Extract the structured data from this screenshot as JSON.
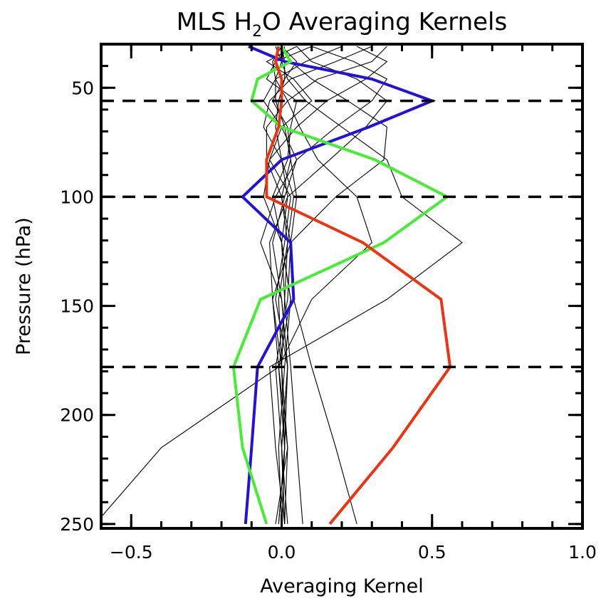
{
  "chart_data": {
    "type": "line",
    "title_main": "MLS H",
    "title_sub": "2",
    "title_rest": "O Averaging Kernels",
    "xlabel": "Averaging Kernel",
    "ylabel": "Pressure (hPa)",
    "xlim": [
      -0.6,
      1.0
    ],
    "ylim": [
      30,
      252
    ],
    "x_ticks": [
      -0.5,
      0.0,
      0.5,
      1.0
    ],
    "x_tick_labels": [
      "−0.5",
      "0.0",
      "0.5",
      "1.0"
    ],
    "y_ticks": [
      50,
      100,
      150,
      200,
      250
    ],
    "y_tick_labels": [
      "50",
      "100",
      "150",
      "200",
      "250"
    ],
    "levels": [
      31,
      38,
      46,
      56,
      68,
      83,
      100,
      121,
      147,
      178,
      215,
      250
    ],
    "reference_lines_hPa": [
      56,
      100,
      178
    ],
    "series": [
      {
        "color": "#2211dd",
        "values": [
          -0.11,
          0.01,
          0.3,
          0.5,
          0.29,
          0.0,
          -0.13,
          0.03,
          0.04,
          -0.08,
          -0.1,
          -0.12
        ]
      },
      {
        "color": "#44ee33",
        "values": [
          0.0,
          0.03,
          -0.08,
          -0.1,
          0.0,
          0.31,
          0.55,
          0.34,
          -0.07,
          -0.16,
          -0.13,
          -0.05
        ]
      },
      {
        "color": "#ee3311",
        "values": [
          -0.01,
          -0.02,
          0.0,
          0.0,
          -0.01,
          -0.05,
          -0.05,
          0.27,
          0.53,
          0.56,
          0.37,
          0.16
        ]
      }
    ],
    "background_kernels": [
      {
        "values": [
          0.0,
          0.05,
          0.01,
          -0.03,
          0.02,
          0.03,
          0.0,
          0.02,
          0.01,
          0.0,
          0.01,
          0.0
        ]
      },
      {
        "values": [
          0.05,
          -0.05,
          0.04,
          0.1,
          0.0,
          -0.04,
          0.03,
          0.01,
          -0.02,
          0.02,
          0.0,
          0.01
        ]
      },
      {
        "values": [
          0.1,
          -0.02,
          -0.05,
          0.05,
          0.03,
          0.02,
          -0.03,
          0.0,
          0.03,
          -0.01,
          0.02,
          -0.02
        ]
      },
      {
        "values": [
          0.2,
          0.08,
          -0.02,
          -0.06,
          0.0,
          0.05,
          0.01,
          -0.03,
          0.0,
          0.02,
          0.0,
          0.01
        ]
      },
      {
        "values": [
          0.3,
          0.18,
          0.03,
          -0.04,
          -0.06,
          0.0,
          0.04,
          0.02,
          -0.01,
          0.0,
          0.01,
          -0.01
        ]
      },
      {
        "values": [
          0.35,
          0.3,
          0.12,
          0.02,
          -0.05,
          -0.05,
          0.0,
          0.03,
          0.02,
          -0.02,
          0.0,
          0.02
        ]
      },
      {
        "values": [
          0.25,
          0.35,
          0.28,
          0.15,
          0.05,
          -0.04,
          -0.06,
          0.0,
          0.03,
          0.01,
          -0.01,
          0.0
        ]
      },
      {
        "values": [
          0.1,
          0.24,
          0.35,
          0.3,
          0.18,
          0.05,
          -0.02,
          -0.07,
          0.0,
          0.02,
          0.01,
          -0.01
        ]
      },
      {
        "values": [
          0.05,
          0.1,
          0.25,
          0.35,
          0.28,
          0.16,
          0.02,
          -0.04,
          -0.03,
          0.0,
          0.02,
          0.01
        ]
      },
      {
        "values": [
          0.0,
          0.03,
          0.1,
          0.22,
          0.35,
          0.34,
          0.18,
          0.03,
          -0.03,
          -0.01,
          0.01,
          0.0
        ]
      },
      {
        "values": [
          -0.02,
          0.0,
          0.02,
          0.08,
          0.2,
          0.35,
          0.4,
          0.6,
          0.35,
          -0.04,
          -0.02,
          0.01
        ]
      },
      {
        "values": [
          0.0,
          -0.03,
          -0.02,
          0.02,
          0.06,
          0.12,
          0.25,
          0.3,
          0.1,
          -0.01,
          -0.4,
          -0.62
        ]
      },
      {
        "values": [
          0.01,
          0.0,
          -0.02,
          -0.02,
          0.01,
          0.03,
          0.05,
          0.03,
          0.04,
          0.1,
          0.18,
          0.25
        ]
      },
      {
        "values": [
          0.0,
          0.01,
          0.01,
          -0.01,
          -0.02,
          0.0,
          0.02,
          0.0,
          0.01,
          0.03,
          0.05,
          0.07
        ]
      }
    ]
  }
}
